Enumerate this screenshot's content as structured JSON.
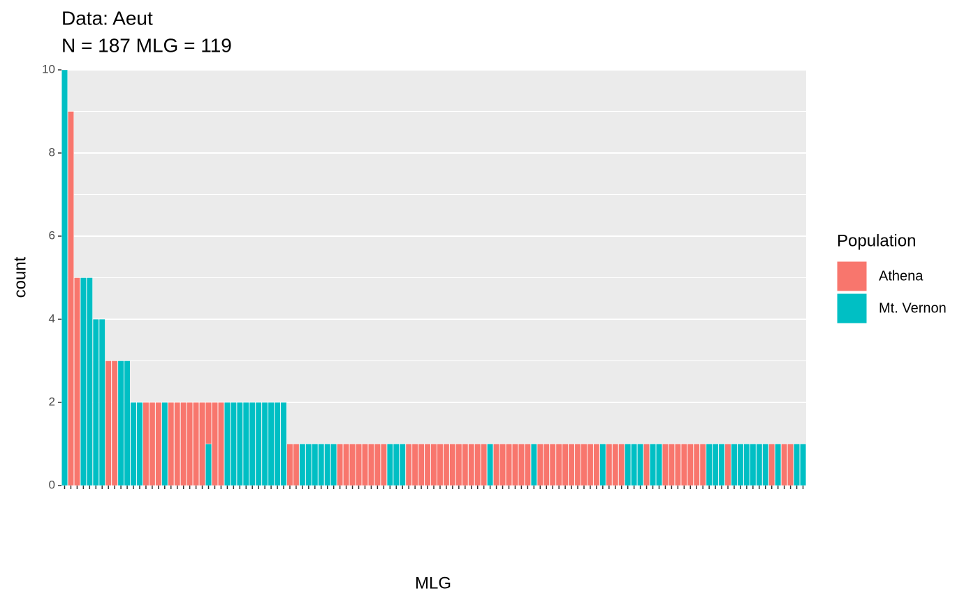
{
  "chart_data": {
    "type": "bar",
    "stacked": true,
    "title": "Data: Aeut",
    "subtitle": "N = 187 MLG = 119",
    "x_label": "MLG",
    "y_label": "count",
    "legend_title": "Population",
    "categories": [
      null,
      null,
      null,
      null,
      null,
      null,
      null,
      null,
      null,
      null,
      null,
      null,
      null,
      null,
      null,
      null,
      null,
      null,
      null,
      null,
      null,
      null,
      null,
      null,
      null,
      null,
      null,
      null,
      null,
      null,
      null,
      null,
      null,
      null,
      null,
      null,
      null,
      null,
      null,
      null,
      null,
      null,
      null,
      null,
      null,
      null,
      null,
      null,
      null,
      null,
      null,
      null,
      null,
      null,
      null,
      null,
      null,
      null,
      null,
      null,
      null,
      null,
      null,
      null,
      null,
      null,
      null,
      null,
      null,
      null,
      null,
      null,
      null,
      null,
      null,
      null,
      null,
      null,
      null,
      null,
      null,
      null,
      null,
      null,
      null,
      null,
      null,
      null,
      null,
      null,
      null,
      null,
      null,
      null,
      null,
      null,
      null,
      null,
      null,
      null,
      null,
      null,
      null,
      null,
      null,
      null,
      null,
      null,
      null,
      null,
      null,
      null,
      null,
      null,
      null,
      null,
      null,
      null,
      null
    ],
    "series": [
      {
        "name": "Athena",
        "color": "#F8766D",
        "values": [
          0,
          9,
          5,
          0,
          0,
          0,
          0,
          3,
          3,
          0,
          0,
          0,
          0,
          2,
          2,
          2,
          0,
          2,
          2,
          2,
          2,
          2,
          2,
          1,
          2,
          2,
          0,
          0,
          0,
          0,
          0,
          0,
          0,
          0,
          0,
          0,
          1,
          1,
          0,
          0,
          0,
          0,
          0,
          0,
          1,
          1,
          1,
          1,
          1,
          1,
          1,
          1,
          0,
          0,
          0,
          1,
          1,
          1,
          1,
          1,
          1,
          1,
          1,
          1,
          1,
          1,
          1,
          1,
          0,
          1,
          1,
          1,
          1,
          1,
          1,
          0,
          1,
          1,
          1,
          1,
          1,
          1,
          1,
          1,
          1,
          1,
          0,
          1,
          1,
          1,
          0,
          0,
          0,
          1,
          0,
          0,
          1,
          1,
          1,
          1,
          1,
          1,
          1,
          0,
          0,
          0,
          1,
          0,
          0,
          0,
          0,
          0,
          0,
          1,
          0,
          1,
          1,
          0,
          0
        ]
      },
      {
        "name": "Mt. Vernon",
        "color": "#00BFC4",
        "values": [
          10,
          0,
          0,
          5,
          5,
          4,
          4,
          0,
          0,
          3,
          3,
          2,
          2,
          0,
          0,
          0,
          2,
          0,
          0,
          0,
          0,
          0,
          0,
          1,
          0,
          0,
          2,
          2,
          2,
          2,
          2,
          2,
          2,
          2,
          2,
          2,
          0,
          0,
          1,
          1,
          1,
          1,
          1,
          1,
          0,
          0,
          0,
          0,
          0,
          0,
          0,
          0,
          1,
          1,
          1,
          0,
          0,
          0,
          0,
          0,
          0,
          0,
          0,
          0,
          0,
          0,
          0,
          0,
          1,
          0,
          0,
          0,
          0,
          0,
          0,
          1,
          0,
          0,
          0,
          0,
          0,
          0,
          0,
          0,
          0,
          0,
          1,
          0,
          0,
          0,
          1,
          1,
          1,
          0,
          1,
          1,
          0,
          0,
          0,
          0,
          0,
          0,
          0,
          1,
          1,
          1,
          0,
          1,
          1,
          1,
          1,
          1,
          1,
          0,
          1,
          0,
          0,
          1,
          1
        ]
      }
    ],
    "ylim": [
      0,
      10
    ],
    "yticks": [
      0,
      2,
      4,
      6,
      8,
      10
    ],
    "grid": true,
    "legend": "right"
  }
}
